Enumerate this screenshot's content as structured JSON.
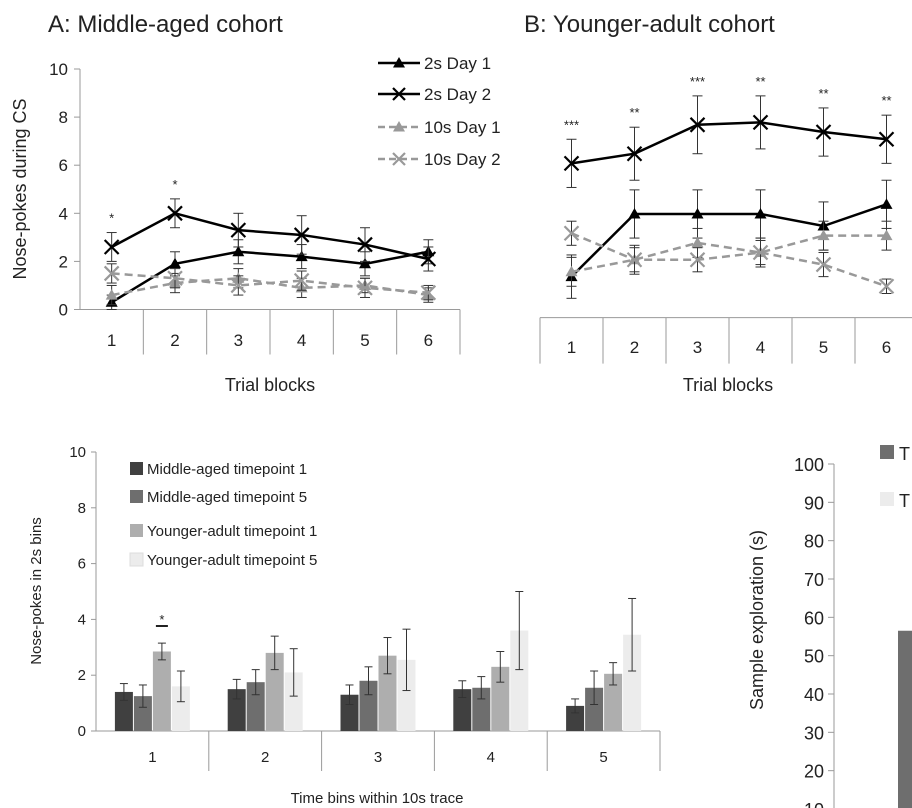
{
  "chart_data": [
    {
      "id": "A",
      "type": "line",
      "title": "A: Middle-aged cohort",
      "xlabel": "Trial blocks",
      "ylabel": "Nose-pokes during CS",
      "ylim": [
        0,
        10
      ],
      "yticks": [
        0,
        2,
        4,
        6,
        8,
        10
      ],
      "categories": [
        "1",
        "2",
        "3",
        "4",
        "5",
        "6"
      ],
      "legend_position": "top-right",
      "series": [
        {
          "name": "2s Day 1",
          "marker": "triangle",
          "style": "solid",
          "color": "#000000",
          "values": [
            0.3,
            1.9,
            2.4,
            2.2,
            1.9,
            2.4
          ],
          "err": [
            0.3,
            0.5,
            0.5,
            0.5,
            0.5,
            0.5
          ]
        },
        {
          "name": "2s Day 2",
          "marker": "x",
          "style": "solid",
          "color": "#000000",
          "values": [
            2.6,
            4.0,
            3.3,
            3.1,
            2.7,
            2.1
          ],
          "err": [
            0.6,
            0.6,
            0.7,
            0.8,
            0.7,
            0.5
          ]
        },
        {
          "name": "10s Day 1",
          "marker": "triangle",
          "style": "dashed",
          "color": "#999999",
          "values": [
            0.6,
            1.1,
            1.3,
            0.9,
            1.0,
            0.6
          ],
          "err": [
            0.4,
            0.4,
            0.4,
            0.4,
            0.3,
            0.3
          ]
        },
        {
          "name": "10s Day 2",
          "marker": "x",
          "style": "dashed",
          "color": "#999999",
          "values": [
            1.5,
            1.3,
            1.0,
            1.2,
            0.9,
            0.7
          ],
          "err": [
            0.4,
            0.4,
            0.4,
            0.4,
            0.4,
            0.3
          ]
        }
      ],
      "annotations": [
        {
          "category": "1",
          "text": "*"
        },
        {
          "category": "2",
          "text": "*"
        }
      ]
    },
    {
      "id": "B",
      "type": "line",
      "title": "B: Younger-adult cohort",
      "xlabel": "Trial blocks",
      "ylim": [
        -1,
        10
      ],
      "categories": [
        "1",
        "2",
        "3",
        "4",
        "5",
        "6"
      ],
      "series": [
        {
          "name": "2s Day 1",
          "values": [
            0.7,
            3.3,
            3.3,
            3.3,
            2.8,
            3.7
          ],
          "err": [
            0.9,
            1.0,
            1.0,
            1.0,
            1.0,
            1.0
          ]
        },
        {
          "name": "2s Day 2",
          "values": [
            5.4,
            5.8,
            7.0,
            7.1,
            6.7,
            6.4
          ],
          "err": [
            1.0,
            1.1,
            1.2,
            1.1,
            1.0,
            1.0
          ]
        },
        {
          "name": "10s Day 1",
          "values": [
            0.9,
            1.4,
            2.1,
            1.7,
            2.4,
            2.4
          ],
          "err": [
            0.6,
            0.6,
            0.6,
            0.6,
            0.6,
            0.6
          ]
        },
        {
          "name": "10s Day 2",
          "values": [
            2.5,
            1.4,
            1.4,
            1.7,
            1.2,
            0.3
          ],
          "err": [
            0.5,
            0.5,
            0.5,
            0.5,
            0.5,
            0.3
          ]
        }
      ],
      "annotations": [
        {
          "category": "1",
          "text": "***"
        },
        {
          "category": "2",
          "text": "**"
        },
        {
          "category": "3",
          "text": "***"
        },
        {
          "category": "4",
          "text": "**"
        },
        {
          "category": "5",
          "text": "**"
        },
        {
          "category": "6",
          "text": "**"
        }
      ]
    },
    {
      "id": "C",
      "type": "bar",
      "xlabel": "Time bins within 10s trace",
      "ylabel": "Nose-pokes in 2s bins",
      "ylim": [
        0,
        10
      ],
      "yticks": [
        0,
        2,
        4,
        6,
        8,
        10
      ],
      "categories": [
        "1",
        "2",
        "3",
        "4",
        "5"
      ],
      "legend_position": "top-left",
      "series": [
        {
          "name": "Middle-aged timepoint 1",
          "color": "#404040",
          "values": [
            1.4,
            1.5,
            1.3,
            1.5,
            0.9
          ],
          "err": [
            0.3,
            0.35,
            0.35,
            0.3,
            0.25
          ]
        },
        {
          "name": "Middle-aged timepoint 5",
          "color": "#6e6e6e",
          "values": [
            1.25,
            1.75,
            1.8,
            1.55,
            1.55
          ],
          "err": [
            0.4,
            0.45,
            0.5,
            0.4,
            0.6
          ]
        },
        {
          "name": "Younger-adult timepoint 1",
          "color": "#aeaeae",
          "values": [
            2.85,
            2.8,
            2.7,
            2.3,
            2.05
          ],
          "err": [
            0.3,
            0.6,
            0.65,
            0.55,
            0.4
          ]
        },
        {
          "name": "Younger-adult timepoint 5",
          "color": "#ececec",
          "values": [
            1.6,
            2.1,
            2.55,
            3.6,
            3.45
          ],
          "err": [
            0.55,
            0.85,
            1.1,
            1.4,
            1.3
          ]
        }
      ],
      "annotations": [
        {
          "category": "1",
          "text": "*"
        }
      ]
    },
    {
      "id": "D",
      "type": "bar",
      "ylabel": "Sample exploration (s)",
      "ylim": [
        0,
        100
      ],
      "yticks": [
        10,
        20,
        30,
        40,
        50,
        60,
        70,
        80,
        90,
        100
      ],
      "series": [
        {
          "name": "T",
          "color": "#6e6e6e",
          "values": [
            56.5
          ]
        },
        {
          "name": "T",
          "color": "#ececec",
          "values": []
        }
      ]
    }
  ]
}
